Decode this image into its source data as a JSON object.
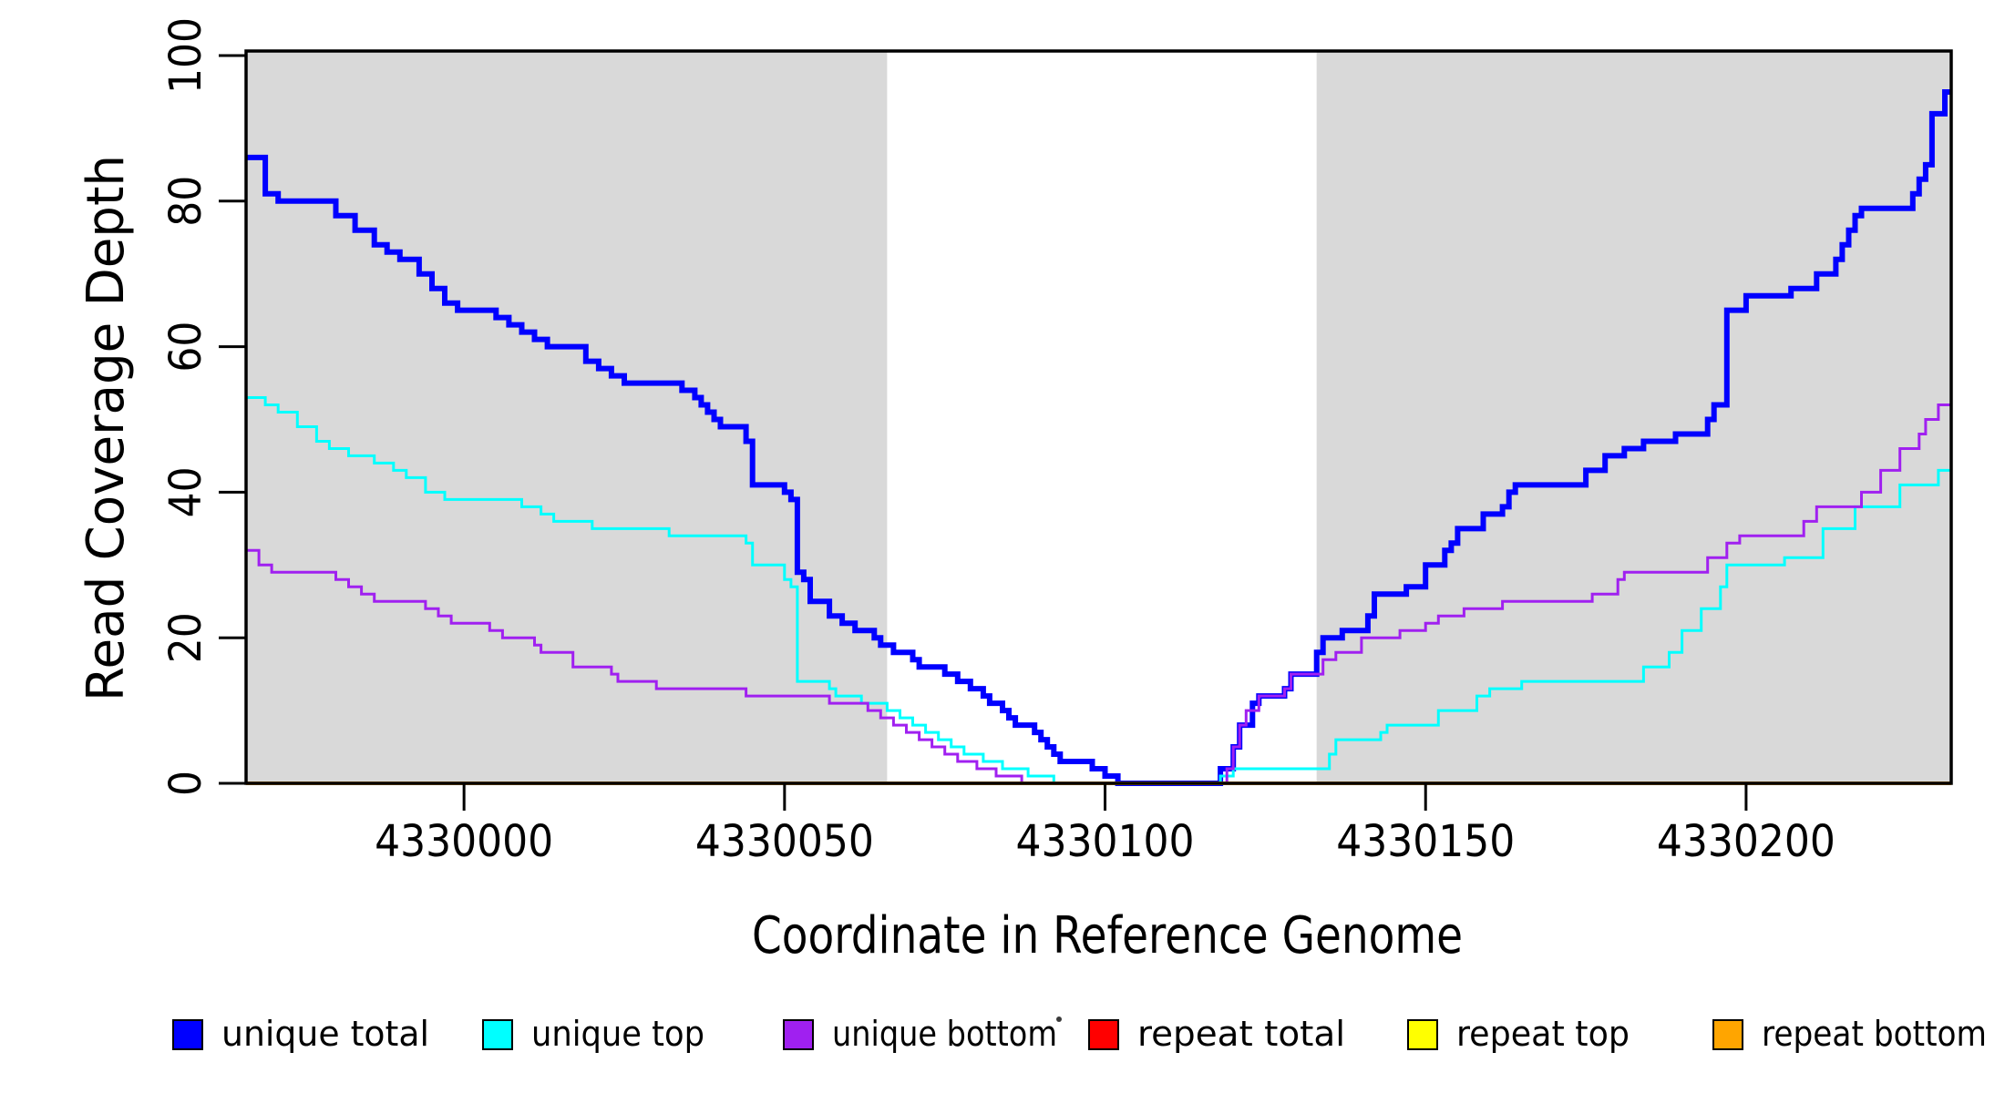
{
  "chart_data": {
    "type": "line",
    "subtype": "step",
    "title": "",
    "xlabel": "Coordinate in Reference Genome",
    "ylabel": "Read Coverage Depth",
    "xlim": [
      4329966,
      4330232
    ],
    "ylim": [
      0,
      100
    ],
    "x_ticks": [
      4330000,
      4330050,
      4330100,
      4330150,
      4330200
    ],
    "y_ticks": [
      0,
      20,
      40,
      60,
      80,
      100
    ],
    "grid": false,
    "legend_position": "bottom",
    "plot_background": "#FFFFFF",
    "background_regions": [
      {
        "name": "left-gray-region",
        "x_start": 4329966,
        "x_end": 4330066,
        "color": "#D9D9D9"
      },
      {
        "name": "right-gray-region",
        "x_start": 4330133,
        "x_end": 4330232,
        "color": "#D9D9D9"
      }
    ],
    "series": [
      {
        "name": "unique total",
        "color": "#0000FF",
        "line_width": 6,
        "points": [
          [
            4329966,
            86
          ],
          [
            4329969,
            81
          ],
          [
            4329971,
            80
          ],
          [
            4329980,
            78
          ],
          [
            4329983,
            76
          ],
          [
            4329986,
            74
          ],
          [
            4329988,
            73
          ],
          [
            4329990,
            72
          ],
          [
            4329993,
            70
          ],
          [
            4329995,
            68
          ],
          [
            4329997,
            66
          ],
          [
            4329999,
            65
          ],
          [
            4330005,
            64
          ],
          [
            4330007,
            63
          ],
          [
            4330009,
            62
          ],
          [
            4330011,
            61
          ],
          [
            4330013,
            60
          ],
          [
            4330019,
            58
          ],
          [
            4330021,
            57
          ],
          [
            4330023,
            56
          ],
          [
            4330025,
            55
          ],
          [
            4330034,
            54
          ],
          [
            4330036,
            53
          ],
          [
            4330037,
            52
          ],
          [
            4330038,
            51
          ],
          [
            4330039,
            50
          ],
          [
            4330040,
            49
          ],
          [
            4330044,
            47
          ],
          [
            4330045,
            41
          ],
          [
            4330050,
            40
          ],
          [
            4330051,
            39
          ],
          [
            4330052,
            29
          ],
          [
            4330053,
            28
          ],
          [
            4330054,
            25
          ],
          [
            4330057,
            23
          ],
          [
            4330059,
            22
          ],
          [
            4330061,
            21
          ],
          [
            4330064,
            20
          ],
          [
            4330065,
            19
          ],
          [
            4330067,
            18
          ],
          [
            4330070,
            17
          ],
          [
            4330071,
            16
          ],
          [
            4330075,
            15
          ],
          [
            4330077,
            14
          ],
          [
            4330079,
            13
          ],
          [
            4330081,
            12
          ],
          [
            4330082,
            11
          ],
          [
            4330084,
            10
          ],
          [
            4330085,
            9
          ],
          [
            4330086,
            8
          ],
          [
            4330089,
            7
          ],
          [
            4330090,
            6
          ],
          [
            4330091,
            5
          ],
          [
            4330092,
            4
          ],
          [
            4330093,
            3
          ],
          [
            4330098,
            2
          ],
          [
            4330100,
            1
          ],
          [
            4330102,
            0
          ],
          [
            4330118,
            2
          ],
          [
            4330120,
            5
          ],
          [
            4330121,
            8
          ],
          [
            4330123,
            11
          ],
          [
            4330124,
            12
          ],
          [
            4330128,
            13
          ],
          [
            4330129,
            15
          ],
          [
            4330133,
            18
          ],
          [
            4330134,
            20
          ],
          [
            4330137,
            21
          ],
          [
            4330141,
            23
          ],
          [
            4330142,
            26
          ],
          [
            4330147,
            27
          ],
          [
            4330150,
            30
          ],
          [
            4330153,
            32
          ],
          [
            4330154,
            33
          ],
          [
            4330155,
            35
          ],
          [
            4330159,
            37
          ],
          [
            4330162,
            38
          ],
          [
            4330163,
            40
          ],
          [
            4330164,
            41
          ],
          [
            4330175,
            43
          ],
          [
            4330178,
            45
          ],
          [
            4330181,
            46
          ],
          [
            4330184,
            47
          ],
          [
            4330189,
            48
          ],
          [
            4330194,
            50
          ],
          [
            4330195,
            52
          ],
          [
            4330197,
            65
          ],
          [
            4330200,
            67
          ],
          [
            4330207,
            68
          ],
          [
            4330211,
            70
          ],
          [
            4330214,
            72
          ],
          [
            4330215,
            74
          ],
          [
            4330216,
            76
          ],
          [
            4330217,
            78
          ],
          [
            4330218,
            79
          ],
          [
            4330226,
            81
          ],
          [
            4330227,
            83
          ],
          [
            4330228,
            85
          ],
          [
            4330229,
            92
          ],
          [
            4330231,
            95
          ]
        ]
      },
      {
        "name": "unique top",
        "color": "#00FFFF",
        "line_width": 3,
        "points": [
          [
            4329966,
            53
          ],
          [
            4329969,
            52
          ],
          [
            4329971,
            51
          ],
          [
            4329974,
            49
          ],
          [
            4329977,
            47
          ],
          [
            4329979,
            46
          ],
          [
            4329982,
            45
          ],
          [
            4329986,
            44
          ],
          [
            4329989,
            43
          ],
          [
            4329991,
            42
          ],
          [
            4329994,
            40
          ],
          [
            4329997,
            39
          ],
          [
            4330009,
            38
          ],
          [
            4330012,
            37
          ],
          [
            4330014,
            36
          ],
          [
            4330020,
            35
          ],
          [
            4330032,
            34
          ],
          [
            4330044,
            33
          ],
          [
            4330045,
            30
          ],
          [
            4330050,
            28
          ],
          [
            4330051,
            27
          ],
          [
            4330052,
            14
          ],
          [
            4330057,
            13
          ],
          [
            4330058,
            12
          ],
          [
            4330062,
            11
          ],
          [
            4330066,
            10
          ],
          [
            4330068,
            9
          ],
          [
            4330070,
            8
          ],
          [
            4330072,
            7
          ],
          [
            4330074,
            6
          ],
          [
            4330076,
            5
          ],
          [
            4330078,
            4
          ],
          [
            4330081,
            3
          ],
          [
            4330084,
            2
          ],
          [
            4330088,
            1
          ],
          [
            4330092,
            0
          ],
          [
            4330118,
            1
          ],
          [
            4330120,
            2
          ],
          [
            4330135,
            4
          ],
          [
            4330136,
            6
          ],
          [
            4330143,
            7
          ],
          [
            4330144,
            8
          ],
          [
            4330152,
            10
          ],
          [
            4330158,
            12
          ],
          [
            4330160,
            13
          ],
          [
            4330165,
            14
          ],
          [
            4330184,
            16
          ],
          [
            4330188,
            18
          ],
          [
            4330190,
            21
          ],
          [
            4330193,
            24
          ],
          [
            4330196,
            27
          ],
          [
            4330197,
            30
          ],
          [
            4330206,
            31
          ],
          [
            4330212,
            35
          ],
          [
            4330217,
            38
          ],
          [
            4330224,
            41
          ],
          [
            4330230,
            43
          ]
        ]
      },
      {
        "name": "unique bottom",
        "color": "#A020F0",
        "line_width": 3,
        "points": [
          [
            4329966,
            32
          ],
          [
            4329968,
            30
          ],
          [
            4329970,
            29
          ],
          [
            4329980,
            28
          ],
          [
            4329982,
            27
          ],
          [
            4329984,
            26
          ],
          [
            4329986,
            25
          ],
          [
            4329994,
            24
          ],
          [
            4329996,
            23
          ],
          [
            4329998,
            22
          ],
          [
            4330004,
            21
          ],
          [
            4330006,
            20
          ],
          [
            4330011,
            19
          ],
          [
            4330012,
            18
          ],
          [
            4330017,
            16
          ],
          [
            4330023,
            15
          ],
          [
            4330024,
            14
          ],
          [
            4330030,
            13
          ],
          [
            4330044,
            12
          ],
          [
            4330057,
            11
          ],
          [
            4330063,
            10
          ],
          [
            4330065,
            9
          ],
          [
            4330067,
            8
          ],
          [
            4330069,
            7
          ],
          [
            4330071,
            6
          ],
          [
            4330073,
            5
          ],
          [
            4330075,
            4
          ],
          [
            4330077,
            3
          ],
          [
            4330080,
            2
          ],
          [
            4330083,
            1
          ],
          [
            4330087,
            0
          ],
          [
            4330119,
            2
          ],
          [
            4330120,
            5
          ],
          [
            4330121,
            8
          ],
          [
            4330122,
            10
          ],
          [
            4330124,
            12
          ],
          [
            4330128,
            13
          ],
          [
            4330129,
            15
          ],
          [
            4330134,
            17
          ],
          [
            4330136,
            18
          ],
          [
            4330140,
            20
          ],
          [
            4330146,
            21
          ],
          [
            4330150,
            22
          ],
          [
            4330152,
            23
          ],
          [
            4330156,
            24
          ],
          [
            4330162,
            25
          ],
          [
            4330176,
            26
          ],
          [
            4330180,
            28
          ],
          [
            4330181,
            29
          ],
          [
            4330194,
            31
          ],
          [
            4330197,
            33
          ],
          [
            4330199,
            34
          ],
          [
            4330209,
            36
          ],
          [
            4330211,
            38
          ],
          [
            4330218,
            40
          ],
          [
            4330221,
            43
          ],
          [
            4330224,
            46
          ],
          [
            4330227,
            48
          ],
          [
            4330228,
            50
          ],
          [
            4330230,
            52
          ]
        ]
      },
      {
        "name": "repeat total",
        "color": "#FF0000",
        "line_width": 3,
        "points": [
          [
            4329966,
            0
          ],
          [
            4330232,
            0
          ]
        ]
      },
      {
        "name": "repeat top",
        "color": "#FFFF00",
        "line_width": 3,
        "points": [
          [
            4329966,
            0
          ],
          [
            4330232,
            0
          ]
        ]
      },
      {
        "name": "repeat bottom",
        "color": "#FFA500",
        "line_width": 4,
        "points": [
          [
            4329966,
            0
          ],
          [
            4330232,
            0
          ]
        ]
      }
    ]
  },
  "misc": {
    "stray_mark": "."
  }
}
